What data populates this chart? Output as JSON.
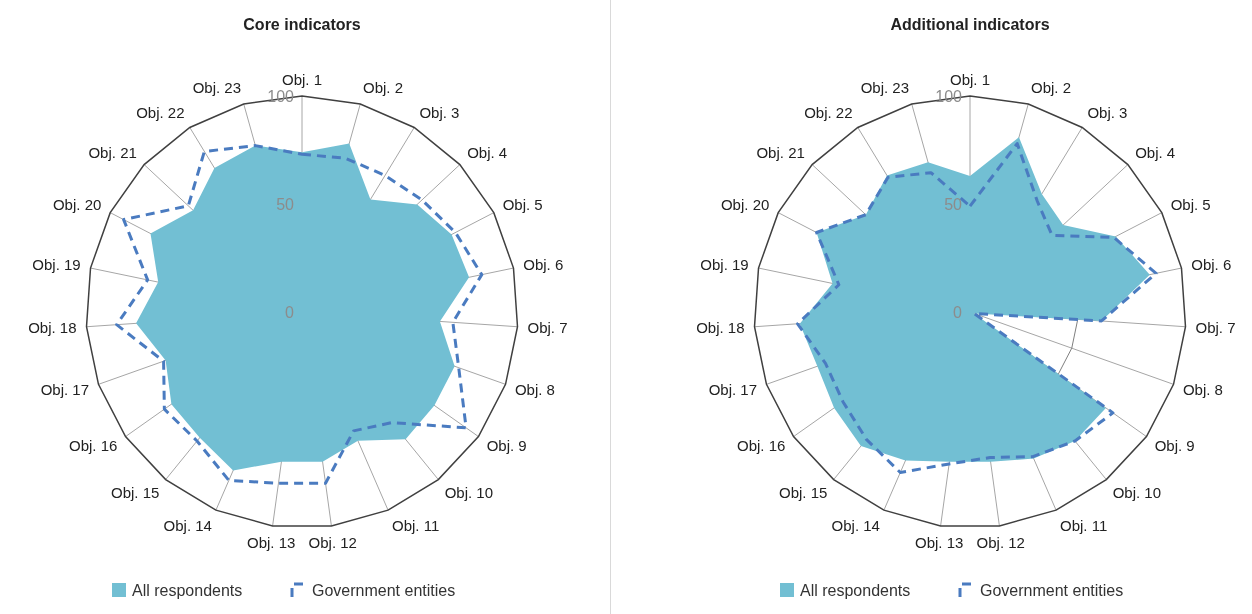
{
  "chart_data": [
    {
      "type": "radar",
      "title": "Core indicators",
      "categories": [
        "Obj. 1",
        "Obj. 2",
        "Obj. 3",
        "Obj. 4",
        "Obj. 5",
        "Obj. 6",
        "Obj. 7",
        "Obj. 8",
        "Obj. 9",
        "Obj. 10",
        "Obj. 11",
        "Obj. 12",
        "Obj. 13",
        "Obj. 14",
        "Obj. 15",
        "Obj. 16",
        "Obj. 17",
        "Obj. 18",
        "Obj. 19",
        "Obj. 20",
        "Obj. 21",
        "Obj. 22",
        "Obj. 23"
      ],
      "ylim": [
        0,
        100
      ],
      "yticks": [
        0,
        50,
        100
      ],
      "grid": true,
      "legend": "bottom",
      "series": [
        {
          "name": "All respondents",
          "type": "area",
          "color": "#72bfd3",
          "values": [
            74,
            81,
            61,
            73,
            78,
            79,
            64,
            75,
            75,
            76,
            65,
            70,
            70,
            80,
            75,
            74,
            67,
            77,
            68,
            79,
            69,
            78,
            80
          ]
        },
        {
          "name": "Government entities",
          "line_style": "dashed",
          "color": "#4a7bc0",
          "values": [
            73,
            74,
            74,
            76,
            80,
            85,
            70,
            77,
            93,
            66,
            60,
            80,
            80,
            85,
            77,
            78,
            68,
            86,
            73,
            93,
            72,
            87,
            80
          ]
        }
      ]
    },
    {
      "type": "radar",
      "title": "Additional indicators",
      "categories": [
        "Obj. 1",
        "Obj. 2",
        "Obj. 3",
        "Obj. 4",
        "Obj. 5",
        "Obj. 6",
        "Obj. 7",
        "Obj. 8",
        "Obj. 9",
        "Obj. 10",
        "Obj. 11",
        "Obj. 12",
        "Obj. 13",
        "Obj. 14",
        "Obj. 15",
        "Obj. 16",
        "Obj. 17",
        "Obj. 18",
        "Obj. 19",
        "Obj. 20",
        "Obj. 21",
        "Obj. 22",
        "Obj. 23"
      ],
      "ylim": [
        0,
        100
      ],
      "yticks": [
        0,
        50,
        100
      ],
      "grid": true,
      "legend": "bottom",
      "series": [
        {
          "name": "All respondents",
          "type": "area",
          "color": "#72bfd3",
          "values": [
            63,
            84,
            64,
            59,
            76,
            85,
            61,
            2,
            77,
            77,
            74,
            70,
            70,
            75,
            80,
            77,
            75,
            79,
            65,
            80,
            66,
            74,
            72
          ]
        },
        {
          "name": "Government entities",
          "line_style": "dashed",
          "color": "#4a7bc0",
          "values": [
            49,
            81,
            60,
            52,
            75,
            88,
            61,
            2,
            81,
            77,
            73,
            68,
            71,
            81,
            76,
            72,
            71,
            80,
            62,
            80,
            66,
            73,
            67
          ]
        }
      ]
    }
  ]
}
